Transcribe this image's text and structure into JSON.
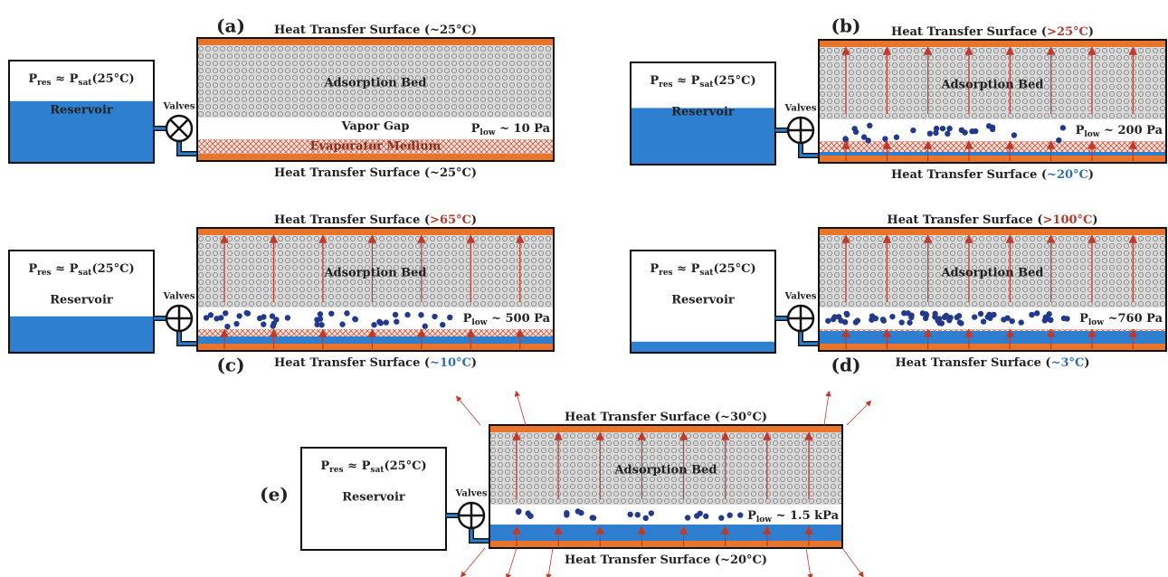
{
  "panels": [
    {
      "label": "(a)",
      "top_surface": {
        "prefix": "Heat Transfer Surface (",
        "temp": "~25°C",
        "suffix": ")"
      },
      "bottom_surface": {
        "prefix": "Heat Transfer Surface (",
        "temp": "~25°C",
        "suffix": ")"
      },
      "reservoir_pressure": [
        "P",
        "res",
        " ≈ P",
        "sat",
        "(25°C)"
      ],
      "reservoir": "Reservoir",
      "valves": "Valves",
      "bed": "Adsorption Bed",
      "vapor_gap": "Vapor Gap",
      "low_pressure": [
        "P",
        "low",
        " ~ 10 Pa"
      ],
      "evaporator": "Evaporator Medium"
    },
    {
      "label": "(b)",
      "top_surface": {
        "prefix": "Heat Transfer Surface (",
        "temp": ">25°C",
        "suffix": ")"
      },
      "bottom_surface": {
        "prefix": "Heat Transfer Surface (",
        "temp": "~20°C",
        "suffix": ")"
      },
      "reservoir_pressure": [
        "P",
        "res",
        " ≈ P",
        "sat",
        "(25°C)"
      ],
      "reservoir": "Reservoir",
      "valves": "Valves",
      "bed": "Adsorption Bed",
      "low_pressure": [
        "P",
        "low",
        " ~ 200 Pa"
      ]
    },
    {
      "label": "(c)",
      "top_surface": {
        "prefix": "Heat Transfer Surface (",
        "temp": ">65°C",
        "suffix": ")"
      },
      "bottom_surface": {
        "prefix": "Heat Transfer Surface (",
        "temp": "~10°C",
        "suffix": ")"
      },
      "reservoir_pressure": [
        "P",
        "res",
        " ≈ P",
        "sat",
        "(25°C)"
      ],
      "reservoir": "Reservoir",
      "valves": "Valves",
      "bed": "Adsorption Bed",
      "low_pressure": [
        "P",
        "low",
        " ~ 500 Pa"
      ]
    },
    {
      "label": "(d)",
      "top_surface": {
        "prefix": "Heat Transfer Surface (",
        "temp": ">100°C",
        "suffix": ")"
      },
      "bottom_surface": {
        "prefix": "Heat Transfer Surface (",
        "temp": "~3°C",
        "suffix": ")"
      },
      "reservoir_pressure": [
        "P",
        "res",
        " ≈ P",
        "sat",
        "(25°C)"
      ],
      "reservoir": "Reservoir",
      "valves": "Valves",
      "bed": "Adsorption Bed",
      "low_pressure": [
        "P",
        "low",
        " ~760 Pa"
      ]
    },
    {
      "label": "(e)",
      "top_surface": {
        "prefix": "Heat Transfer Surface (",
        "temp": "~30°C",
        "suffix": ")"
      },
      "bottom_surface": {
        "prefix": "Heat Transfer Surface (",
        "temp": "~20°C",
        "suffix": ")"
      },
      "reservoir_pressure": [
        "P",
        "res",
        " ≈ P",
        "sat",
        "(25°C)"
      ],
      "reservoir": "Reservoir",
      "valves": "Valves",
      "bed": "Adsorption Bed",
      "low_pressure": [
        "P",
        "low",
        " ~ 1.5 kPa"
      ]
    }
  ]
}
